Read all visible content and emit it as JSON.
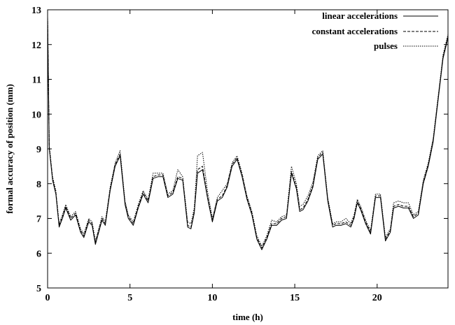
{
  "chart_data": {
    "type": "line",
    "title": "",
    "xlabel": "time (h)",
    "ylabel": "formal accuracy of position (mm)",
    "xlim": [
      0,
      24.3
    ],
    "ylim": [
      5,
      13
    ],
    "xticks": [
      0,
      5,
      10,
      15,
      20
    ],
    "yticks": [
      5,
      6,
      7,
      8,
      9,
      10,
      11,
      12,
      13
    ],
    "xtick_labels": [
      "0",
      "5",
      "10",
      "15",
      "20"
    ],
    "ytick_labels": [
      "5",
      "6",
      "7",
      "8",
      "9",
      "10",
      "11",
      "12",
      "13"
    ],
    "grid": false,
    "legend_position": "top-right",
    "x": [
      0,
      0.1,
      0.3,
      0.5,
      0.7,
      0.9,
      1.1,
      1.4,
      1.7,
      2.0,
      2.2,
      2.5,
      2.7,
      2.9,
      3.1,
      3.3,
      3.5,
      3.8,
      4.1,
      4.4,
      4.7,
      4.9,
      5.2,
      5.5,
      5.8,
      6.1,
      6.4,
      6.7,
      7.0,
      7.3,
      7.6,
      7.9,
      8.2,
      8.5,
      8.7,
      8.9,
      9.1,
      9.4,
      9.7,
      10.0,
      10.3,
      10.6,
      10.9,
      11.2,
      11.5,
      11.8,
      12.1,
      12.4,
      12.7,
      13.0,
      13.3,
      13.6,
      13.9,
      14.2,
      14.5,
      14.8,
      15.1,
      15.3,
      15.5,
      15.8,
      16.1,
      16.4,
      16.7,
      17.0,
      17.3,
      17.5,
      17.8,
      18.1,
      18.4,
      18.6,
      18.8,
      19.0,
      19.3,
      19.6,
      19.9,
      20.2,
      20.5,
      20.8,
      21.0,
      21.3,
      21.6,
      21.9,
      22.2,
      22.5,
      22.8,
      23.1,
      23.4,
      23.6,
      23.8,
      24.0,
      24.15,
      24.3
    ],
    "series": [
      {
        "name": "linear accelerations",
        "dash": "solid",
        "values": [
          12.8,
          9.0,
          8.1,
          7.7,
          6.75,
          7.0,
          7.3,
          6.95,
          7.1,
          6.6,
          6.45,
          6.9,
          6.8,
          6.25,
          6.6,
          6.95,
          6.8,
          7.8,
          8.5,
          8.8,
          7.4,
          7.0,
          6.8,
          7.3,
          7.7,
          7.45,
          8.15,
          8.2,
          8.2,
          7.6,
          7.7,
          8.15,
          8.1,
          6.75,
          6.7,
          7.15,
          8.3,
          8.4,
          7.6,
          6.9,
          7.5,
          7.6,
          7.9,
          8.5,
          8.7,
          8.2,
          7.55,
          7.1,
          6.4,
          6.1,
          6.4,
          6.8,
          6.8,
          6.95,
          7.0,
          8.3,
          7.85,
          7.2,
          7.25,
          7.5,
          7.9,
          8.7,
          8.85,
          7.5,
          6.75,
          6.8,
          6.8,
          6.85,
          6.75,
          7.0,
          7.45,
          7.25,
          6.85,
          6.55,
          7.6,
          7.6,
          6.35,
          6.6,
          7.3,
          7.35,
          7.3,
          7.3,
          7.0,
          7.1,
          8.0,
          8.5,
          9.2,
          10.0,
          10.8,
          11.6,
          11.9,
          12.2
        ]
      },
      {
        "name": "constant accelerations",
        "dash": "dashed",
        "values": [
          12.8,
          9.05,
          8.15,
          7.75,
          6.8,
          7.05,
          7.35,
          7.0,
          7.15,
          6.65,
          6.5,
          6.95,
          6.85,
          6.3,
          6.65,
          7.0,
          6.85,
          7.85,
          8.55,
          8.85,
          7.45,
          7.05,
          6.85,
          7.35,
          7.75,
          7.5,
          8.2,
          8.25,
          8.25,
          7.65,
          7.75,
          8.2,
          8.15,
          6.8,
          6.75,
          7.2,
          8.4,
          8.5,
          7.65,
          6.95,
          7.55,
          7.65,
          7.95,
          8.55,
          8.75,
          8.25,
          7.6,
          7.15,
          6.45,
          6.15,
          6.45,
          6.85,
          6.85,
          7.0,
          7.05,
          8.35,
          7.9,
          7.25,
          7.3,
          7.55,
          7.95,
          8.75,
          8.9,
          7.55,
          6.8,
          6.85,
          6.85,
          6.9,
          6.8,
          7.05,
          7.5,
          7.3,
          6.9,
          6.6,
          7.65,
          7.65,
          6.4,
          6.65,
          7.35,
          7.4,
          7.35,
          7.35,
          7.05,
          7.15,
          8.05,
          8.55,
          9.25,
          10.05,
          10.85,
          11.65,
          11.95,
          12.25
        ]
      },
      {
        "name": "pulses",
        "dash": "dotted",
        "values": [
          12.8,
          9.1,
          8.2,
          7.8,
          6.85,
          7.1,
          7.4,
          7.05,
          7.2,
          6.7,
          6.55,
          7.0,
          6.9,
          6.35,
          6.7,
          7.05,
          6.9,
          7.9,
          8.6,
          8.95,
          7.5,
          7.1,
          6.9,
          7.4,
          7.8,
          7.55,
          8.3,
          8.3,
          8.3,
          7.7,
          7.8,
          8.4,
          8.2,
          6.9,
          6.85,
          7.3,
          8.8,
          8.9,
          7.8,
          7.0,
          7.6,
          7.8,
          8.0,
          8.6,
          8.8,
          8.3,
          7.65,
          7.2,
          6.5,
          6.2,
          6.5,
          6.95,
          6.9,
          7.05,
          7.1,
          8.5,
          8.0,
          7.35,
          7.4,
          7.65,
          8.05,
          8.8,
          8.95,
          7.6,
          6.85,
          6.9,
          6.9,
          7.0,
          6.85,
          7.1,
          7.55,
          7.35,
          6.95,
          6.65,
          7.7,
          7.7,
          6.45,
          6.7,
          7.45,
          7.5,
          7.45,
          7.45,
          7.1,
          7.2,
          8.1,
          8.6,
          9.3,
          10.1,
          10.9,
          11.7,
          12.0,
          12.3
        ]
      }
    ]
  }
}
